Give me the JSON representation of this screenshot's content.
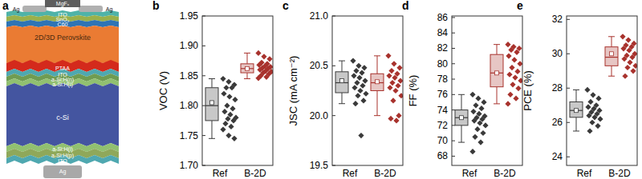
{
  "diagram": {
    "label": "a",
    "layers": [
      "MgFₓ",
      "Ag",
      "ITO",
      "SnO₂",
      "C60",
      "2D/3D Perovskite",
      "PTAA",
      "ITO",
      "a-Si:H(n)",
      "a-Si:H(i)",
      "c-Si",
      "a-Si:H(i)",
      "a-Si:H(p)",
      "ITO",
      "Ag"
    ]
  },
  "chart_data": [
    {
      "type": "box",
      "label": "b",
      "y_label": "VOC (V)",
      "categories": [
        "Ref",
        "B-2D"
      ],
      "ylim": [
        1.7,
        1.95
      ],
      "yticks": [
        {
          "value": 1.7,
          "label": "1.70"
        },
        1.75,
        {
          "value": 1.8,
          "label": "1.80"
        },
        1.85,
        {
          "value": 1.9,
          "label": "1.90"
        },
        1.95
      ],
      "boxes": [
        {
          "whisker_low": 1.745,
          "q1": 1.775,
          "median": 1.8,
          "q3": 1.83,
          "whisker_high": 1.845,
          "mean": 1.805,
          "color": "#3a3a3a",
          "points": [
            1.845,
            1.84,
            1.835,
            1.83,
            1.83,
            1.82,
            1.815,
            1.81,
            1.8,
            1.795,
            1.79,
            1.785,
            1.78,
            1.778,
            1.775,
            1.77,
            1.765,
            1.76,
            1.75,
            1.745
          ]
        },
        {
          "whisker_low": 1.845,
          "q1": 1.855,
          "median": 1.862,
          "q3": 1.87,
          "whisker_high": 1.888,
          "mean": 1.862,
          "color": "#a8322d",
          "points": [
            1.888,
            1.882,
            1.878,
            1.872,
            1.87,
            1.868,
            1.866,
            1.865,
            1.863,
            1.862,
            1.86,
            1.858,
            1.857,
            1.855,
            1.853,
            1.85,
            1.848,
            1.846
          ]
        }
      ]
    },
    {
      "type": "box",
      "label": "c",
      "y_label": "JSC (mA cm⁻²)",
      "categories": [
        "Ref",
        "B-2D"
      ],
      "ylim": [
        19.5,
        21.0
      ],
      "yticks": [
        19.5,
        {
          "value": 20,
          "label": "20.0"
        },
        20.5,
        {
          "value": 21,
          "label": "21.0"
        }
      ],
      "boxes": [
        {
          "whisker_low": 20.12,
          "q1": 20.23,
          "median": 20.33,
          "q3": 20.44,
          "whisker_high": 20.55,
          "mean": 20.35,
          "color": "#3a3a3a",
          "points": [
            20.55,
            20.5,
            20.48,
            20.45,
            20.43,
            20.4,
            20.38,
            20.35,
            20.33,
            20.3,
            20.28,
            20.25,
            20.22,
            20.2,
            20.15,
            20.12,
            19.8
          ]
        },
        {
          "whisker_low": 20.0,
          "q1": 20.25,
          "median": 20.33,
          "q3": 20.42,
          "whisker_high": 20.6,
          "mean": 20.34,
          "color": "#a8322d",
          "points": [
            20.6,
            20.52,
            20.48,
            20.45,
            20.42,
            20.4,
            20.38,
            20.35,
            20.33,
            20.3,
            20.28,
            20.25,
            20.2,
            20.15,
            20.0,
            19.97,
            19.95
          ]
        }
      ]
    },
    {
      "type": "box",
      "label": "d",
      "y_label": "FF (%)",
      "categories": [
        "Ref",
        "B-2D"
      ],
      "ylim": [
        66.8,
        86.2
      ],
      "yticks": [
        68,
        70,
        72,
        74,
        76,
        78,
        80,
        82,
        84,
        86
      ],
      "boxes": [
        {
          "whisker_low": 69.8,
          "q1": 72.0,
          "median": 73.0,
          "q3": 74.0,
          "whisker_high": 76.0,
          "mean": 73.0,
          "color": "#3a3a3a",
          "points": [
            76.0,
            75.5,
            75.0,
            74.6,
            74.2,
            73.8,
            73.5,
            73.2,
            73.0,
            72.8,
            72.6,
            72.3,
            72.0,
            71.5,
            71.0,
            70.5,
            69.8,
            68.6
          ]
        },
        {
          "whisker_low": 74.8,
          "q1": 77.0,
          "median": 78.8,
          "q3": 81.2,
          "whisker_high": 82.5,
          "mean": 78.8,
          "color": "#a8322d",
          "points": [
            82.5,
            82.2,
            82.0,
            81.8,
            81.5,
            81.0,
            80.5,
            80.0,
            79.5,
            79.0,
            78.6,
            78.2,
            77.8,
            77.3,
            76.8,
            76.0,
            75.5,
            74.8
          ]
        }
      ]
    },
    {
      "type": "box",
      "label": "e",
      "y_label": "PCE (%)",
      "categories": [
        "Ref",
        "B-2D"
      ],
      "ylim": [
        23.5,
        32.2
      ],
      "yticks": [
        24,
        26,
        28,
        30,
        32
      ],
      "boxes": [
        {
          "whisker_low": 25.5,
          "q1": 26.3,
          "median": 26.7,
          "q3": 27.2,
          "whisker_high": 27.9,
          "mean": 26.7,
          "color": "#3a3a3a",
          "points": [
            27.9,
            27.6,
            27.4,
            27.2,
            27.0,
            26.9,
            26.8,
            26.7,
            26.6,
            26.5,
            26.4,
            26.3,
            26.2,
            26.0,
            25.8,
            25.5
          ]
        },
        {
          "whisker_low": 28.7,
          "q1": 29.3,
          "median": 29.8,
          "q3": 30.4,
          "whisker_high": 31.0,
          "mean": 30.0,
          "color": "#a8322d",
          "points": [
            31.0,
            30.8,
            30.6,
            30.5,
            30.4,
            30.3,
            30.2,
            30.0,
            29.9,
            29.8,
            29.7,
            29.5,
            29.3,
            29.2,
            29.0,
            28.7
          ]
        }
      ]
    }
  ]
}
